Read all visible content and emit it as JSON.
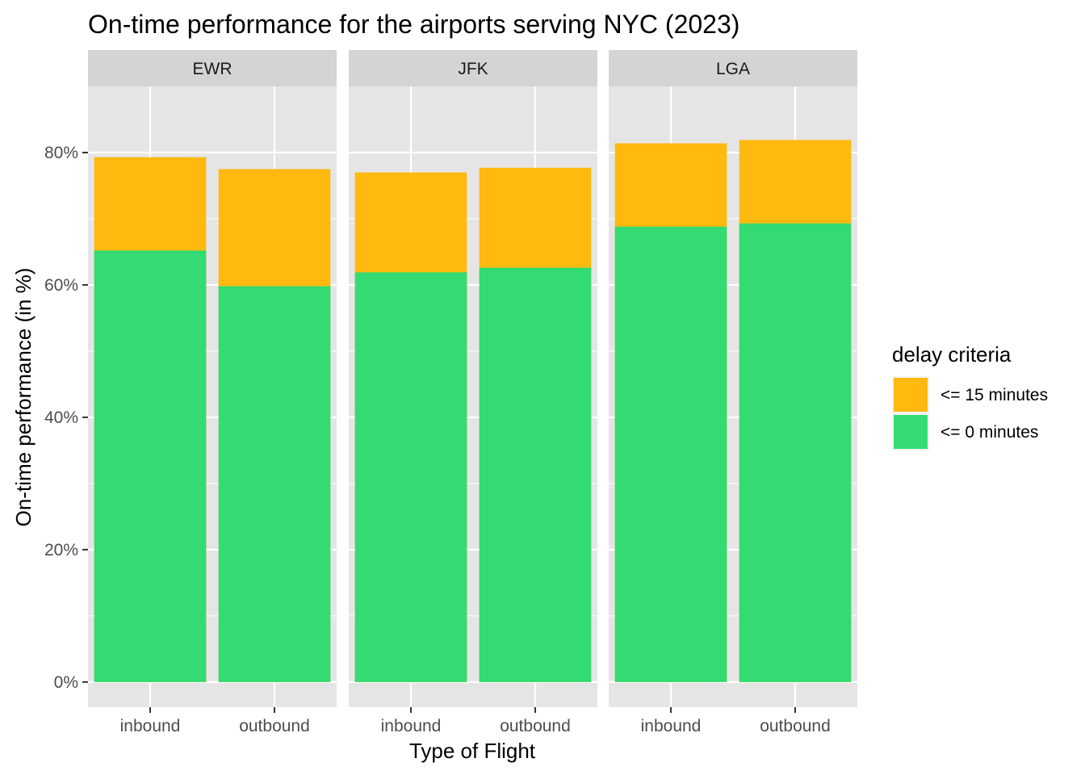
{
  "chart_data": {
    "type": "bar",
    "stacked": true,
    "title": "On-time performance for the airports serving NYC (2023)",
    "xlabel": "Type of Flight",
    "ylabel": "On-time performance (in %)",
    "ylim": [
      -0.038,
      0.9
    ],
    "y_ticks": [
      0,
      0.2,
      0.4,
      0.6,
      0.8
    ],
    "y_tick_labels": [
      "0%",
      "20%",
      "40%",
      "60%",
      "80%"
    ],
    "grid": true,
    "facets": [
      "EWR",
      "JFK",
      "LGA"
    ],
    "categories": [
      "inbound",
      "outbound"
    ],
    "series": [
      {
        "name": "<= 15 minutes",
        "color": "#FFB90F",
        "values": {
          "EWR": [
            0.793,
            0.775
          ],
          "JFK": [
            0.77,
            0.777
          ],
          "LGA": [
            0.814,
            0.819
          ]
        }
      },
      {
        "name": "<= 0 minutes",
        "color": "#33DB72",
        "values": {
          "EWR": [
            0.652,
            0.598
          ],
          "JFK": [
            0.619,
            0.626
          ],
          "LGA": [
            0.688,
            0.693
          ]
        }
      }
    ],
    "legend": {
      "title": "delay criteria",
      "position": "right"
    },
    "colors": {
      "panel_bg": "#E5E5E5",
      "strip_bg": "#D4D4D4",
      "grid": "#FFFFFF",
      "tick": "#333333"
    }
  }
}
